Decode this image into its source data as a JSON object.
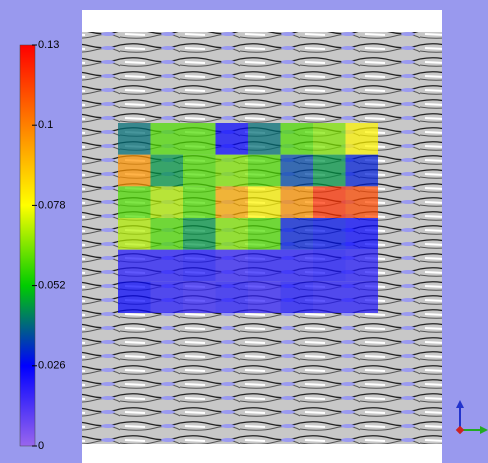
{
  "chart_data": {
    "type": "heatmap",
    "values": [
      [
        0.04,
        0.06,
        0.06,
        0.025,
        0.04,
        0.06,
        0.065,
        0.08
      ],
      [
        0.1,
        0.045,
        0.06,
        0.065,
        0.06,
        0.035,
        0.045,
        0.03
      ],
      [
        0.06,
        0.07,
        0.06,
        0.095,
        0.08,
        0.1,
        0.12,
        0.115
      ],
      [
        0.07,
        0.06,
        0.045,
        0.065,
        0.06,
        0.03,
        0.028,
        0.025
      ],
      [
        0.02,
        0.02,
        0.022,
        0.018,
        0.02,
        0.02,
        0.022,
        0.02
      ],
      [
        0.025,
        0.02,
        0.018,
        0.02,
        0.018,
        0.022,
        0.02,
        0.02
      ]
    ],
    "colorscale": [
      "#9966ee",
      "#0000ff",
      "#00cc00",
      "#ffff00",
      "#ff8000",
      "#ff0000"
    ],
    "ylim": [
      0,
      0.13
    ],
    "yticks": [
      0,
      0.026,
      0.052,
      0.078,
      {
        "value": 0.104,
        "label": "0.1"
      },
      0.13
    ]
  }
}
